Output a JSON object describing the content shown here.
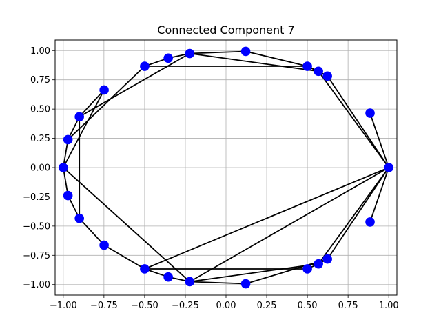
{
  "chart_data": {
    "type": "scatter",
    "title": "Connected Component 7",
    "xlabel": "",
    "ylabel": "",
    "xlim": [
      -1.05,
      1.05
    ],
    "ylim": [
      -1.09,
      1.09
    ],
    "grid": true,
    "legend": "none",
    "x_ticks": [
      {
        "value": -1.0,
        "label": "−1.00"
      },
      {
        "value": -0.75,
        "label": "−0.75"
      },
      {
        "value": -0.5,
        "label": "−0.50"
      },
      {
        "value": -0.25,
        "label": "−0.25"
      },
      {
        "value": 0.0,
        "label": "0.00"
      },
      {
        "value": 0.25,
        "label": "0.25"
      },
      {
        "value": 0.5,
        "label": "0.50"
      },
      {
        "value": 0.75,
        "label": "0.75"
      },
      {
        "value": 1.0,
        "label": "1.00"
      }
    ],
    "y_ticks": [
      {
        "value": 1.0,
        "label": "1.00"
      },
      {
        "value": 0.75,
        "label": "0.75"
      },
      {
        "value": 0.5,
        "label": "0.50"
      },
      {
        "value": 0.25,
        "label": "0.25"
      },
      {
        "value": 0.0,
        "label": "0.00"
      },
      {
        "value": -0.25,
        "label": "−0.25"
      },
      {
        "value": -0.5,
        "label": "−0.50"
      },
      {
        "value": -0.75,
        "label": "−0.75"
      },
      {
        "value": -1.0,
        "label": "−1.00"
      }
    ],
    "node_color": "#0000ff",
    "edge_color": "#000000",
    "grid_color": "#b0b0b0",
    "nodes": [
      {
        "id": "A",
        "x": 1.0,
        "y": 0.0
      },
      {
        "id": "B",
        "x": 0.885,
        "y": 0.465
      },
      {
        "id": "C",
        "x": 0.623,
        "y": 0.782
      },
      {
        "id": "D",
        "x": 0.568,
        "y": 0.823
      },
      {
        "id": "E",
        "x": 0.5,
        "y": 0.866
      },
      {
        "id": "F",
        "x": 0.121,
        "y": 0.993
      },
      {
        "id": "G",
        "x": -0.223,
        "y": 0.975
      },
      {
        "id": "H",
        "x": -0.355,
        "y": 0.935
      },
      {
        "id": "I",
        "x": -0.5,
        "y": 0.866
      },
      {
        "id": "J",
        "x": -0.749,
        "y": 0.663
      },
      {
        "id": "K",
        "x": -0.901,
        "y": 0.434
      },
      {
        "id": "L",
        "x": -0.971,
        "y": 0.239
      },
      {
        "id": "M",
        "x": -1.0,
        "y": 0.0
      },
      {
        "id": "N",
        "x": -0.971,
        "y": -0.239
      },
      {
        "id": "O",
        "x": -0.901,
        "y": -0.434
      },
      {
        "id": "P",
        "x": -0.749,
        "y": -0.663
      },
      {
        "id": "Q",
        "x": -0.5,
        "y": -0.866
      },
      {
        "id": "R",
        "x": -0.355,
        "y": -0.935
      },
      {
        "id": "S",
        "x": -0.223,
        "y": -0.975
      },
      {
        "id": "T",
        "x": 0.121,
        "y": -0.993
      },
      {
        "id": "U",
        "x": 0.5,
        "y": -0.866
      },
      {
        "id": "V",
        "x": 0.568,
        "y": -0.823
      },
      {
        "id": "W",
        "x": 0.623,
        "y": -0.782
      },
      {
        "id": "X",
        "x": 0.885,
        "y": -0.465
      }
    ],
    "edges": [
      [
        "A",
        "B"
      ],
      [
        "A",
        "C"
      ],
      [
        "A",
        "D"
      ],
      [
        "A",
        "X"
      ],
      [
        "A",
        "W"
      ],
      [
        "A",
        "V"
      ],
      [
        "A",
        "Q"
      ],
      [
        "A",
        "S"
      ],
      [
        "C",
        "D"
      ],
      [
        "D",
        "E"
      ],
      [
        "C",
        "E"
      ],
      [
        "E",
        "I"
      ],
      [
        "D",
        "G"
      ],
      [
        "F",
        "E"
      ],
      [
        "F",
        "G"
      ],
      [
        "G",
        "H"
      ],
      [
        "G",
        "K"
      ],
      [
        "H",
        "I"
      ],
      [
        "I",
        "L"
      ],
      [
        "J",
        "K"
      ],
      [
        "J",
        "M"
      ],
      [
        "K",
        "L"
      ],
      [
        "K",
        "O"
      ],
      [
        "L",
        "M"
      ],
      [
        "M",
        "N"
      ],
      [
        "M",
        "S"
      ],
      [
        "N",
        "O"
      ],
      [
        "O",
        "P"
      ],
      [
        "P",
        "Q"
      ],
      [
        "Q",
        "U"
      ],
      [
        "Q",
        "R"
      ],
      [
        "R",
        "S"
      ],
      [
        "S",
        "T"
      ],
      [
        "S",
        "V"
      ],
      [
        "T",
        "W"
      ],
      [
        "U",
        "V"
      ],
      [
        "V",
        "W"
      ]
    ]
  }
}
